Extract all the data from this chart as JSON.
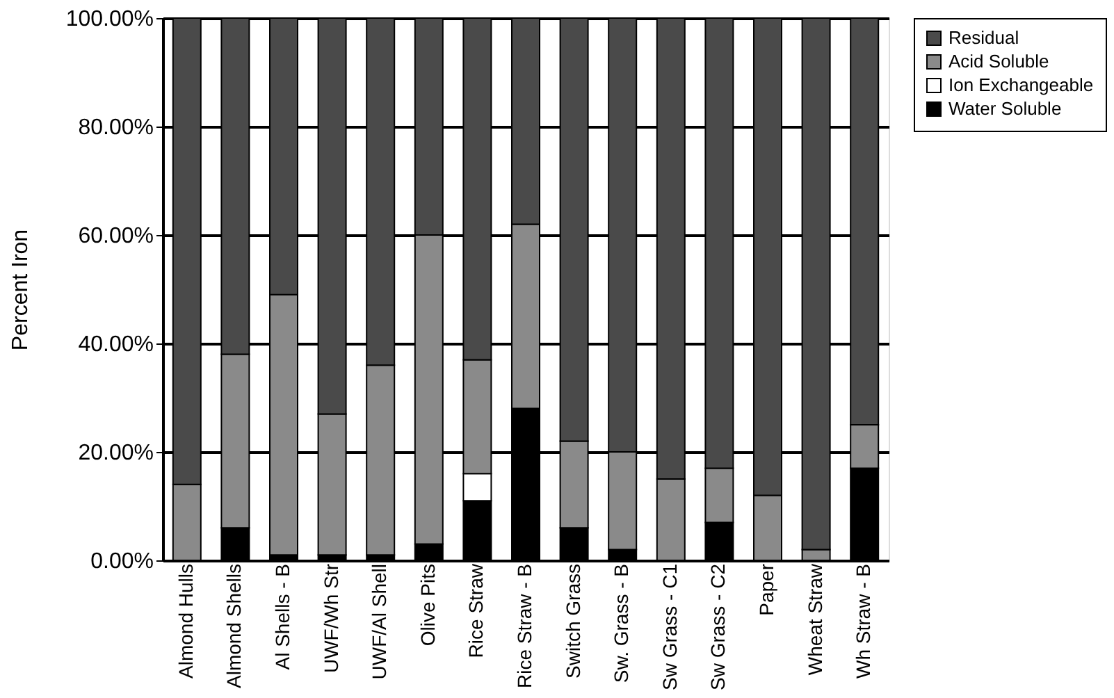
{
  "chart_data": {
    "type": "bar",
    "stacked": true,
    "ylabel": "Percent Iron",
    "categories": [
      "Almond Hulls",
      "Almond Shells",
      "Al Shells - B",
      "UWF/Wh Str",
      "UWF/Al Shell",
      "Olive Pits",
      "Rice Straw",
      "Rice Straw - B",
      "Switch Grass",
      "Sw. Grass - B",
      "Sw Grass - C1",
      "Sw Grass - C2",
      "Paper",
      "Wheat Straw",
      "Wh Straw - B"
    ],
    "series": [
      {
        "name": "Water Soluble",
        "color": "#000000",
        "values": [
          0,
          6,
          1,
          1,
          1,
          3,
          11,
          28,
          6,
          2,
          0,
          7,
          0,
          0,
          17
        ]
      },
      {
        "name": "Ion Exchangeable",
        "color": "#ffffff",
        "values": [
          0,
          0,
          0,
          0,
          0,
          0,
          5,
          0,
          0,
          0,
          0,
          0,
          0,
          0,
          0
        ]
      },
      {
        "name": "Acid Soluble",
        "color": "#8a8a8a",
        "values": [
          14,
          32,
          48,
          26,
          35,
          57,
          21,
          34,
          16,
          18,
          15,
          10,
          12,
          2,
          8
        ]
      },
      {
        "name": "Residual",
        "color": "#4a4a4a",
        "values": [
          86,
          62,
          51,
          73,
          64,
          40,
          63,
          38,
          78,
          80,
          85,
          83,
          88,
          98,
          75
        ]
      }
    ],
    "ylim": [
      0,
      100
    ],
    "yticks": [
      {
        "value": 0,
        "label": "0.00%"
      },
      {
        "value": 20,
        "label": "20.00%"
      },
      {
        "value": 40,
        "label": "40.00%"
      },
      {
        "value": 60,
        "label": "60.00%"
      },
      {
        "value": 80,
        "label": "80.00%"
      },
      {
        "value": 100,
        "label": "100.00%"
      }
    ],
    "grid": "y",
    "legend": "right"
  }
}
